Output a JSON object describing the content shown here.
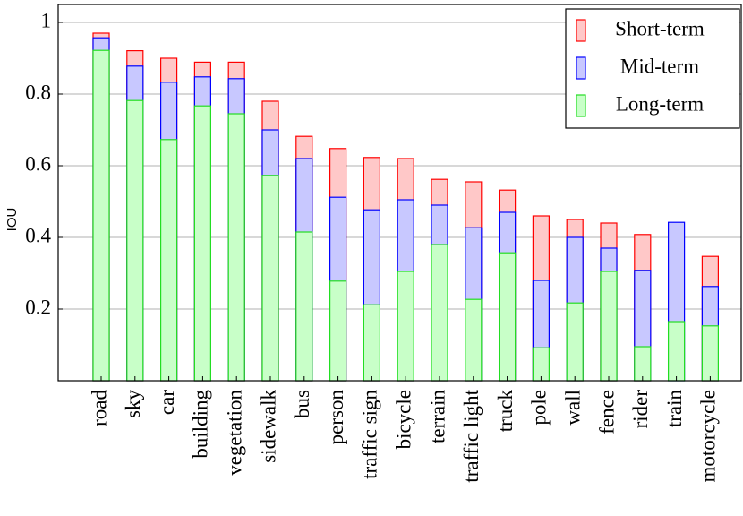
{
  "chart_data": {
    "type": "overlaid-bar",
    "ylabel": "IOU",
    "categories": [
      "road",
      "sky",
      "car",
      "building",
      "vegetation",
      "sidewalk",
      "bus",
      "person",
      "traffic sign",
      "bicycle",
      "terrain",
      "traffic light",
      "truck",
      "pole",
      "wall",
      "fence",
      "rider",
      "train",
      "motorcycle"
    ],
    "series": [
      {
        "name": "Short-term",
        "color": "#ff0000",
        "fill": "#ffc8c8",
        "values": [
          0.97,
          0.921,
          0.9,
          0.889,
          0.889,
          0.78,
          0.682,
          0.648,
          0.623,
          0.62,
          0.562,
          0.555,
          0.532,
          0.46,
          0.45,
          0.44,
          0.408,
          null,
          0.347
        ]
      },
      {
        "name": "Mid-term",
        "color": "#0000ff",
        "fill": "#c8c8ff",
        "values": [
          0.957,
          0.878,
          0.833,
          0.848,
          0.843,
          0.7,
          0.62,
          0.512,
          0.477,
          0.505,
          0.49,
          0.427,
          0.47,
          0.28,
          0.4,
          0.37,
          0.308,
          0.442,
          0.263
        ]
      },
      {
        "name": "Long-term",
        "color": "#22dd22",
        "fill": "#c8ffc8",
        "values": [
          0.922,
          0.782,
          0.673,
          0.767,
          0.745,
          0.573,
          0.415,
          0.278,
          0.212,
          0.305,
          0.38,
          0.227,
          0.357,
          0.092,
          0.217,
          0.305,
          0.095,
          0.165,
          0.153
        ]
      }
    ],
    "ylim": [
      0,
      1.05
    ],
    "yticks": [
      0.2,
      0.4,
      0.6,
      0.8,
      1
    ],
    "grid": true,
    "legend": "top-right"
  }
}
